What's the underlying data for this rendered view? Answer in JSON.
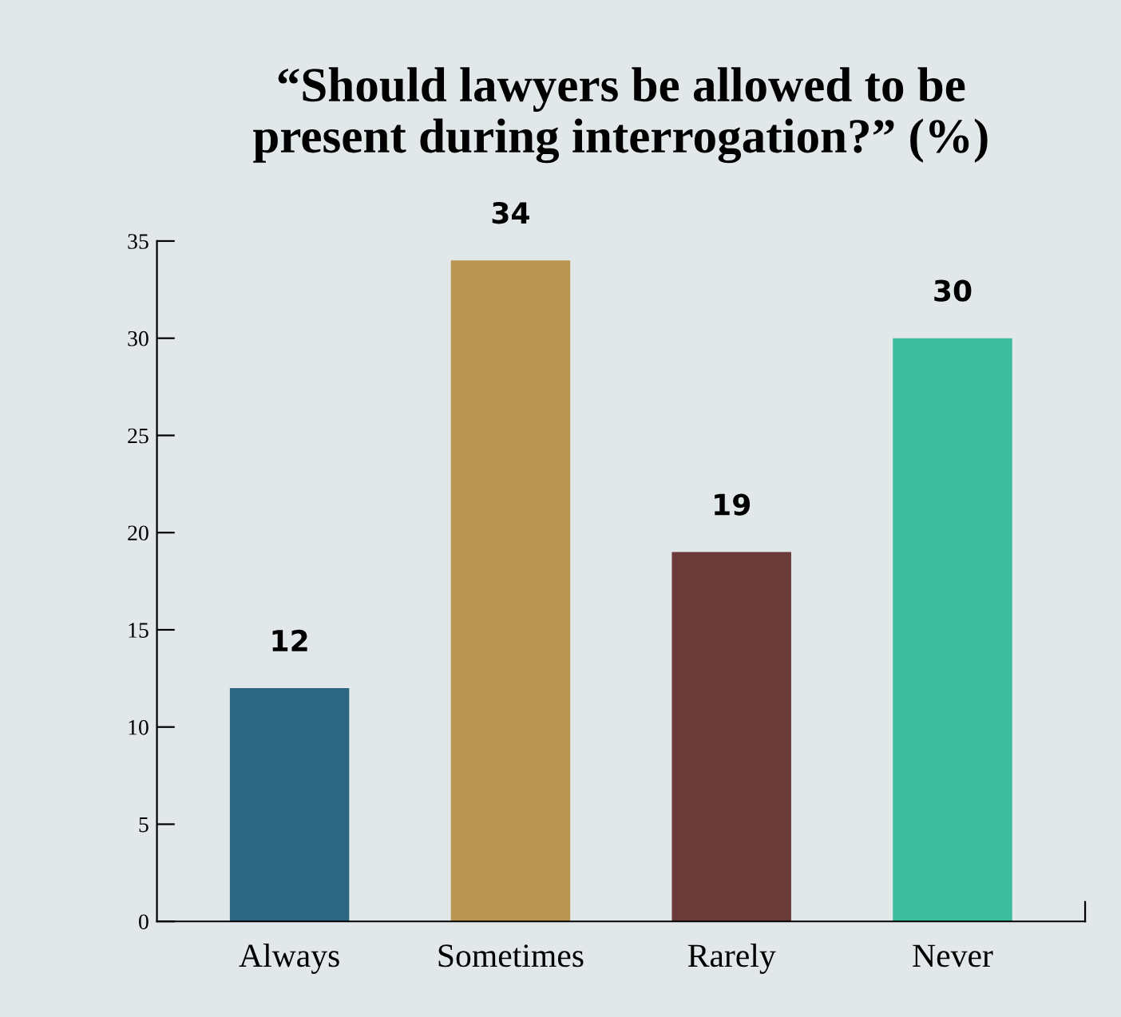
{
  "chart_data": {
    "type": "bar",
    "title": "“Should lawyers be allowed to be\npresent during interrogation?” (%)",
    "categories": [
      "Always",
      "Sometimes",
      "Rarely",
      "Never"
    ],
    "values": [
      12,
      34,
      19,
      30
    ],
    "colors": [
      "#2c6683",
      "#bb9653",
      "#6a3b38",
      "#3bbc9d"
    ],
    "ylim": [
      0,
      35
    ],
    "yticks": [
      0,
      5,
      10,
      15,
      20,
      25,
      30,
      35
    ],
    "data_labels": true,
    "grid": false,
    "legend": false
  }
}
